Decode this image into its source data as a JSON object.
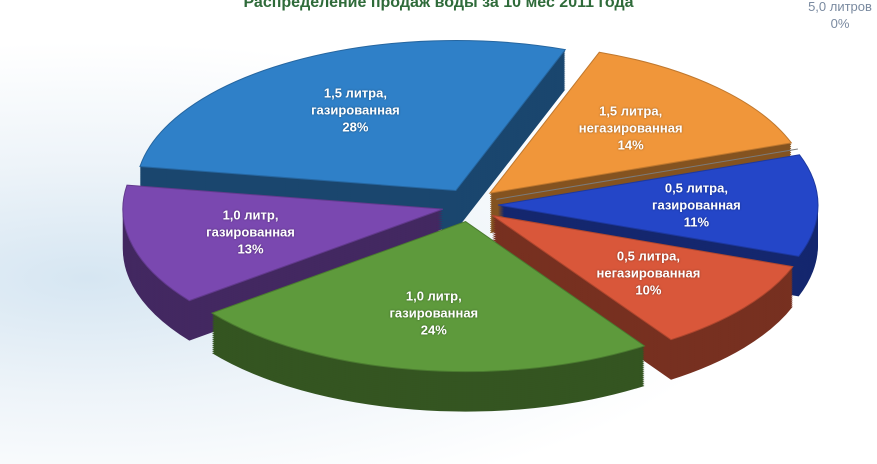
{
  "chart_data": {
    "type": "pie",
    "title": "Распределение продаж воды за 10 мес 2011 года",
    "categories": [
      "1,5 литра, негазированная",
      "5,0 литров",
      "0,5 литра, газированная",
      "0,5 литра, негазированная",
      "1,0 литр, газированная",
      "1,0 литр, газированная",
      "1,5 литра, газированная"
    ],
    "values": [
      14,
      0,
      11,
      10,
      24,
      13,
      28
    ],
    "value_labels": [
      "14%",
      "0%",
      "11%",
      "10%",
      "24%",
      "13%",
      "28%"
    ],
    "colors": [
      "#f0963a",
      "#9a9a9a",
      "#2446c8",
      "#d9573a",
      "#5e9a3c",
      "#7a48b0",
      "#2f80c8"
    ]
  }
}
